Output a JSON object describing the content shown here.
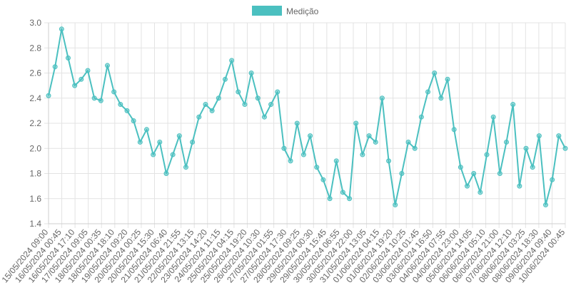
{
  "chart_data": {
    "type": "line",
    "legend": {
      "position": "top",
      "label": "Medição",
      "color": "#4bc0c0"
    },
    "series": [
      {
        "name": "Medição",
        "color": "#4bc0c0",
        "x": [
          "15/05/2024 09:00",
          "15/05/2024 21:00",
          "16/05/2024 00:45",
          "16/05/2024 09:00",
          "16/05/2024 17:10",
          "17/05/2024 00:00",
          "17/05/2024 09:05",
          "17/05/2024 18:00",
          "18/05/2024 00:35",
          "18/05/2024 10:00",
          "18/05/2024 18:10",
          "19/05/2024 02:00",
          "19/05/2024 09:20",
          "19/05/2024 17:00",
          "20/05/2024 00:25",
          "20/05/2024 08:00",
          "20/05/2024 15:30",
          "20/05/2024 22:00",
          "21/05/2024 06:40",
          "21/05/2024 14:00",
          "21/05/2024 21:55",
          "22/05/2024 06:00",
          "22/05/2024 13:15",
          "22/05/2024 22:00",
          "23/05/2024 14:20",
          "24/05/2024 02:00",
          "24/05/2024 11:15",
          "24/05/2024 20:00",
          "25/05/2024 04:15",
          "25/05/2024 12:00",
          "25/05/2024 19:20",
          "26/05/2024 03:00",
          "26/05/2024 10:30",
          "26/05/2024 18:00",
          "27/05/2024 01:55",
          "27/05/2024 10:00",
          "27/05/2024 17:30",
          "28/05/2024 02:00",
          "28/05/2024 09:25",
          "28/05/2024 17:00",
          "29/05/2024 00:30",
          "29/05/2024 08:00",
          "29/05/2024 15:45",
          "29/05/2024 23:00",
          "30/05/2024 06:55",
          "30/05/2024 14:00",
          "30/05/2024 22:00",
          "31/05/2024 05:00",
          "31/05/2024 13:05",
          "31/05/2024 20:00",
          "01/06/2024 04:15",
          "01/06/2024 11:00",
          "01/06/2024 19:20",
          "02/06/2024 03:00",
          "02/06/2024 10:25",
          "02/06/2024 18:00",
          "03/06/2024 01:45",
          "03/06/2024 09:00",
          "03/06/2024 16:50",
          "04/06/2024 00:00",
          "04/06/2024 07:55",
          "04/06/2024 15:00",
          "04/06/2024 23:00",
          "05/06/2024 06:00",
          "05/06/2024 14:05",
          "05/06/2024 21:00",
          "06/06/2024 05:10",
          "06/06/2024 13:00",
          "06/06/2024 21:00",
          "07/06/2024 04:00",
          "07/06/2024 12:10",
          "07/06/2024 20:00",
          "08/06/2024 03:25",
          "08/06/2024 11:00",
          "08/06/2024 18:30",
          "09/06/2024 02:00",
          "09/06/2024 09:40",
          "09/06/2024 17:00",
          "10/06/2024 00:45",
          "10/06/2024 08:00"
        ],
        "y": [
          2.42,
          2.65,
          2.95,
          2.72,
          2.5,
          2.55,
          2.62,
          2.4,
          2.38,
          2.66,
          2.45,
          2.35,
          2.3,
          2.22,
          2.05,
          2.15,
          1.95,
          2.05,
          1.8,
          1.95,
          2.1,
          1.85,
          2.05,
          2.25,
          2.35,
          2.3,
          2.4,
          2.55,
          2.7,
          2.45,
          2.35,
          2.6,
          2.4,
          2.25,
          2.35,
          2.45,
          2.0,
          1.9,
          2.2,
          1.95,
          2.1,
          1.85,
          1.75,
          1.6,
          1.9,
          1.65,
          1.6,
          2.2,
          1.95,
          2.1,
          2.05,
          2.4,
          1.9,
          1.55,
          1.8,
          2.05,
          2.0,
          2.25,
          2.45,
          2.6,
          2.4,
          2.55,
          2.15,
          1.85,
          1.7,
          1.8,
          1.65,
          1.95,
          2.25,
          1.8,
          2.05,
          2.35,
          1.7,
          2.0,
          1.85,
          2.1,
          1.55,
          1.75,
          2.1,
          2.0
        ]
      }
    ],
    "x_tick_labels": [
      "15/05/2024 09:00",
      "16/05/2024 00:45",
      "16/05/2024 17:10",
      "17/05/2024 09:05",
      "18/05/2024 00:35",
      "18/05/2024 18:10",
      "19/05/2024 09:20",
      "20/05/2024 00:25",
      "20/05/2024 15:30",
      "21/05/2024 06:40",
      "21/05/2024 21:55",
      "22/05/2024 13:15",
      "23/05/2024 14:20",
      "24/05/2024 11:15",
      "25/05/2024 04:15",
      "25/05/2024 19:20",
      "26/05/2024 10:30",
      "27/05/2024 01:55",
      "27/05/2024 17:30",
      "28/05/2024 09:25",
      "29/05/2024 00:30",
      "29/05/2024 15:45",
      "30/05/2024 06:55",
      "30/05/2024 22:00",
      "31/05/2024 13:05",
      "01/06/2024 04:15",
      "01/06/2024 19:20",
      "02/06/2024 10:25",
      "03/06/2024 01:45",
      "03/06/2024 16:50",
      "04/06/2024 07:55",
      "04/06/2024 23:00",
      "05/06/2024 14:05",
      "06/06/2024 05:10",
      "06/06/2024 21:00",
      "07/06/2024 12:10",
      "08/06/2024 03:25",
      "08/06/2024 18:30",
      "09/06/2024 09:40",
      "10/06/2024 00:45"
    ],
    "y_ticks": [
      1.4,
      1.6,
      1.8,
      2.0,
      2.2,
      2.4,
      2.6,
      2.8,
      3.0
    ],
    "ylim": [
      1.4,
      3.0
    ],
    "grid": true
  }
}
